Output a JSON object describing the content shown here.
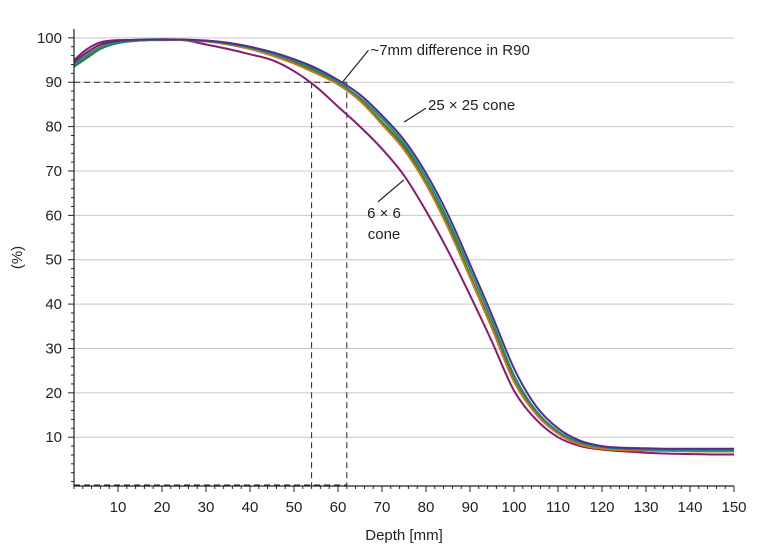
{
  "chart_data": {
    "type": "line",
    "title": "",
    "xlabel": "Depth [mm]",
    "ylabel": "(%)",
    "xlim": [
      0,
      150
    ],
    "ylim": [
      -1,
      102
    ],
    "xticks": [
      10,
      20,
      30,
      40,
      50,
      60,
      70,
      80,
      90,
      100,
      110,
      120,
      130,
      140,
      150
    ],
    "yticks": [
      10,
      20,
      30,
      40,
      50,
      60,
      70,
      80,
      90,
      100
    ],
    "grid": "horizontal",
    "series": [
      {
        "color": "#8b1a6e",
        "points": [
          [
            0,
            95
          ],
          [
            3,
            97.5
          ],
          [
            6,
            99
          ],
          [
            10,
            99.5
          ],
          [
            15,
            99.5
          ],
          [
            20,
            99.5
          ],
          [
            25,
            99.5
          ],
          [
            30,
            98.5
          ],
          [
            35,
            97.5
          ],
          [
            40,
            96.3
          ],
          [
            45,
            95
          ],
          [
            50,
            92.5
          ],
          [
            55,
            89
          ],
          [
            60,
            84.5
          ],
          [
            65,
            80
          ],
          [
            70,
            75
          ],
          [
            75,
            69
          ],
          [
            80,
            61
          ],
          [
            85,
            52
          ],
          [
            90,
            42
          ],
          [
            95,
            31.5
          ],
          [
            100,
            20.5
          ],
          [
            105,
            14
          ],
          [
            110,
            10
          ],
          [
            115,
            8
          ],
          [
            120,
            7.2
          ],
          [
            125,
            6.8
          ],
          [
            130,
            6.5
          ],
          [
            135,
            6.3
          ],
          [
            140,
            6.2
          ],
          [
            145,
            6.1
          ],
          [
            150,
            6.1
          ]
        ]
      },
      {
        "color": "#2e7d32",
        "points": [
          [
            0,
            93.5
          ],
          [
            3,
            95.5
          ],
          [
            6,
            97.5
          ],
          [
            10,
            98.8
          ],
          [
            15,
            99.4
          ],
          [
            20,
            99.6
          ],
          [
            25,
            99.5
          ],
          [
            30,
            99.2
          ],
          [
            35,
            98.6
          ],
          [
            40,
            97.6
          ],
          [
            45,
            96.2
          ],
          [
            50,
            94.5
          ],
          [
            55,
            92.5
          ],
          [
            60,
            89.8
          ],
          [
            65,
            86
          ],
          [
            70,
            81
          ],
          [
            75,
            75.5
          ],
          [
            80,
            67.5
          ],
          [
            85,
            58
          ],
          [
            90,
            46.5
          ],
          [
            95,
            35
          ],
          [
            100,
            23
          ],
          [
            105,
            15.5
          ],
          [
            110,
            11
          ],
          [
            115,
            8.5
          ],
          [
            120,
            7.5
          ],
          [
            125,
            7.2
          ],
          [
            130,
            7
          ],
          [
            135,
            7
          ],
          [
            140,
            6.9
          ],
          [
            145,
            6.8
          ],
          [
            150,
            6.8
          ]
        ]
      },
      {
        "color": "#c77a10",
        "points": [
          [
            0,
            94.5
          ],
          [
            3,
            96.5
          ],
          [
            6,
            98.2
          ],
          [
            10,
            99.2
          ],
          [
            15,
            99.5
          ],
          [
            20,
            99.6
          ],
          [
            25,
            99.5
          ],
          [
            30,
            99.2
          ],
          [
            35,
            98.5
          ],
          [
            40,
            97.5
          ],
          [
            45,
            96
          ],
          [
            50,
            94.2
          ],
          [
            55,
            92
          ],
          [
            60,
            89.5
          ],
          [
            65,
            85.8
          ],
          [
            70,
            80.5
          ],
          [
            75,
            74.8
          ],
          [
            80,
            67
          ],
          [
            85,
            57.2
          ],
          [
            90,
            46
          ],
          [
            95,
            34.5
          ],
          [
            100,
            22.5
          ],
          [
            105,
            15.2
          ],
          [
            110,
            10.8
          ],
          [
            115,
            8.3
          ],
          [
            120,
            7.4
          ],
          [
            125,
            7.1
          ],
          [
            130,
            7
          ],
          [
            135,
            6.9
          ],
          [
            140,
            6.8
          ],
          [
            145,
            6.8
          ],
          [
            150,
            6.8
          ]
        ]
      },
      {
        "color": "#1a8a8a",
        "points": [
          [
            0,
            94
          ],
          [
            3,
            96
          ],
          [
            6,
            97.8
          ],
          [
            10,
            99
          ],
          [
            15,
            99.4
          ],
          [
            20,
            99.6
          ],
          [
            25,
            99.6
          ],
          [
            30,
            99.3
          ],
          [
            35,
            98.7
          ],
          [
            40,
            97.8
          ],
          [
            45,
            96.4
          ],
          [
            50,
            94.8
          ],
          [
            55,
            92.8
          ],
          [
            60,
            90
          ],
          [
            65,
            86.5
          ],
          [
            70,
            81.8
          ],
          [
            75,
            76.2
          ],
          [
            80,
            68.5
          ],
          [
            85,
            59
          ],
          [
            90,
            47.8
          ],
          [
            95,
            36.2
          ],
          [
            100,
            24
          ],
          [
            105,
            16
          ],
          [
            110,
            11.3
          ],
          [
            115,
            8.8
          ],
          [
            120,
            7.8
          ],
          [
            125,
            7.4
          ],
          [
            130,
            7.2
          ],
          [
            135,
            7.1
          ],
          [
            140,
            7
          ],
          [
            145,
            7
          ],
          [
            150,
            7
          ]
        ]
      },
      {
        "color": "#5a2a8a",
        "points": [
          [
            0,
            94.5
          ],
          [
            3,
            96.8
          ],
          [
            6,
            98.5
          ],
          [
            10,
            99.3
          ],
          [
            15,
            99.6
          ],
          [
            20,
            99.7
          ],
          [
            25,
            99.6
          ],
          [
            30,
            99.4
          ],
          [
            35,
            98.9
          ],
          [
            40,
            98
          ],
          [
            45,
            96.8
          ],
          [
            50,
            95.2
          ],
          [
            55,
            93.2
          ],
          [
            60,
            90.5
          ],
          [
            65,
            87.2
          ],
          [
            70,
            82.5
          ],
          [
            75,
            77
          ],
          [
            80,
            69.5
          ],
          [
            85,
            60.2
          ],
          [
            90,
            49
          ],
          [
            95,
            37.5
          ],
          [
            100,
            25.5
          ],
          [
            105,
            17
          ],
          [
            110,
            12
          ],
          [
            115,
            9.2
          ],
          [
            120,
            8
          ],
          [
            125,
            7.6
          ],
          [
            130,
            7.5
          ],
          [
            135,
            7.4
          ],
          [
            140,
            7.4
          ],
          [
            145,
            7.4
          ],
          [
            150,
            7.4
          ]
        ]
      }
    ],
    "reference_lines": {
      "y": 90,
      "x": [
        54,
        62
      ]
    },
    "annotations": [
      {
        "text": "~7mm difference in R90",
        "x": 61,
        "y": 90
      },
      {
        "text": "25 × 25 cone",
        "x": 75,
        "y": 81
      },
      {
        "lines": [
          "6 × 6",
          "cone"
        ],
        "x": 75,
        "y": 68
      }
    ]
  }
}
